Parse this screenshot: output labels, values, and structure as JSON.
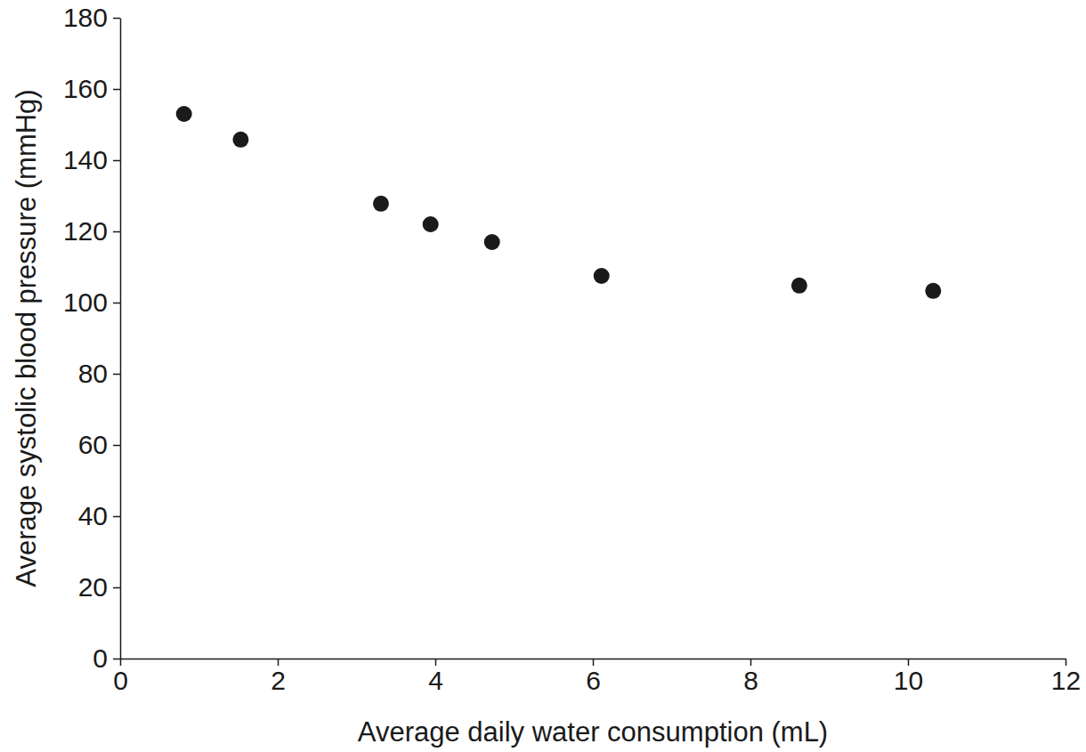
{
  "chart_data": {
    "type": "scatter",
    "x_label": "Average daily water consumption (mL)",
    "y_label": "Average systolic blood pressure (mmHg)",
    "x": [
      0.81,
      1.53,
      3.31,
      3.94,
      4.72,
      6.11,
      8.62,
      10.32
    ],
    "series": [
      {
        "values": [
          153,
          145.8,
          127.8,
          122,
          117,
          107.5,
          104.8,
          103.3
        ],
        "color": "#1a1a1a",
        "marker": "circle"
      }
    ],
    "xlim": [
      0,
      12
    ],
    "xticks": [
      0,
      2,
      4,
      6,
      8,
      10,
      12
    ],
    "ylim": [
      0,
      180
    ],
    "yticks": [
      0,
      20,
      40,
      60,
      80,
      100,
      120,
      140,
      160,
      180
    ],
    "grid": false
  }
}
